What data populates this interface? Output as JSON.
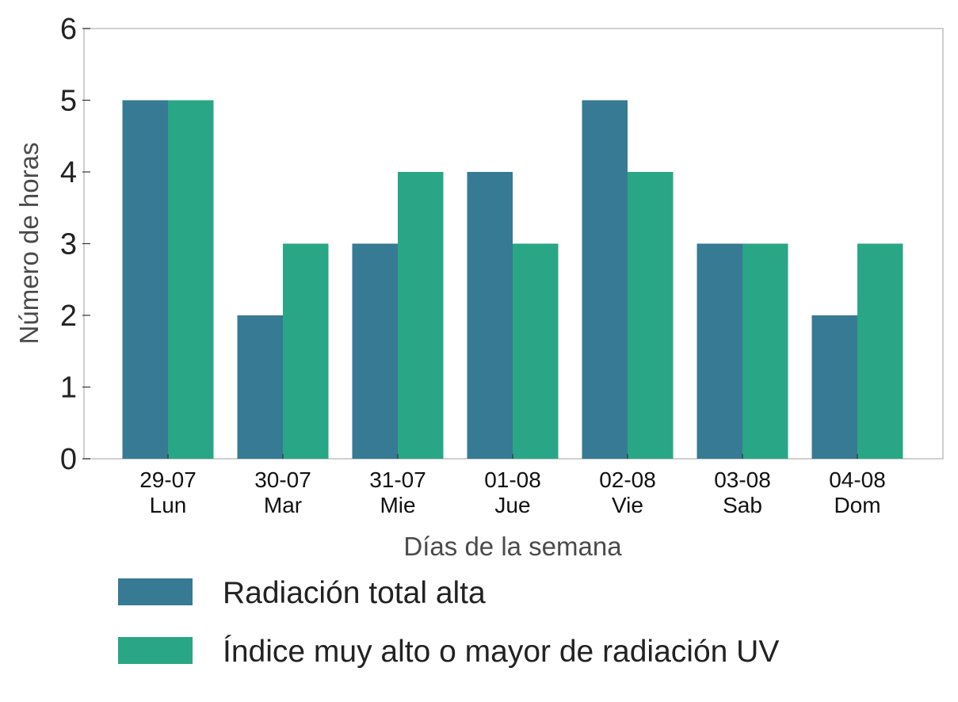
{
  "chart_data": {
    "type": "bar",
    "title": "",
    "xlabel": "Días de la semana",
    "ylabel": "Número de horas",
    "ylim": [
      0,
      6
    ],
    "yticks": [
      0,
      1,
      2,
      3,
      4,
      5,
      6
    ],
    "grid": false,
    "legend_position": "bottom",
    "categories": [
      [
        "29-07",
        "Lun"
      ],
      [
        "30-07",
        "Mar"
      ],
      [
        "31-07",
        "Mie"
      ],
      [
        "01-08",
        "Jue"
      ],
      [
        "02-08",
        "Vie"
      ],
      [
        "03-08",
        "Sab"
      ],
      [
        "04-08",
        "Dom"
      ]
    ],
    "series": [
      {
        "name": "Radiación total alta",
        "color": "#377a93",
        "values": [
          5,
          2,
          3,
          4,
          5,
          3,
          2
        ]
      },
      {
        "name": "Índice muy alto o mayor de radiación UV",
        "color": "#29a685",
        "values": [
          5,
          3,
          4,
          3,
          4,
          3,
          3
        ]
      }
    ]
  }
}
